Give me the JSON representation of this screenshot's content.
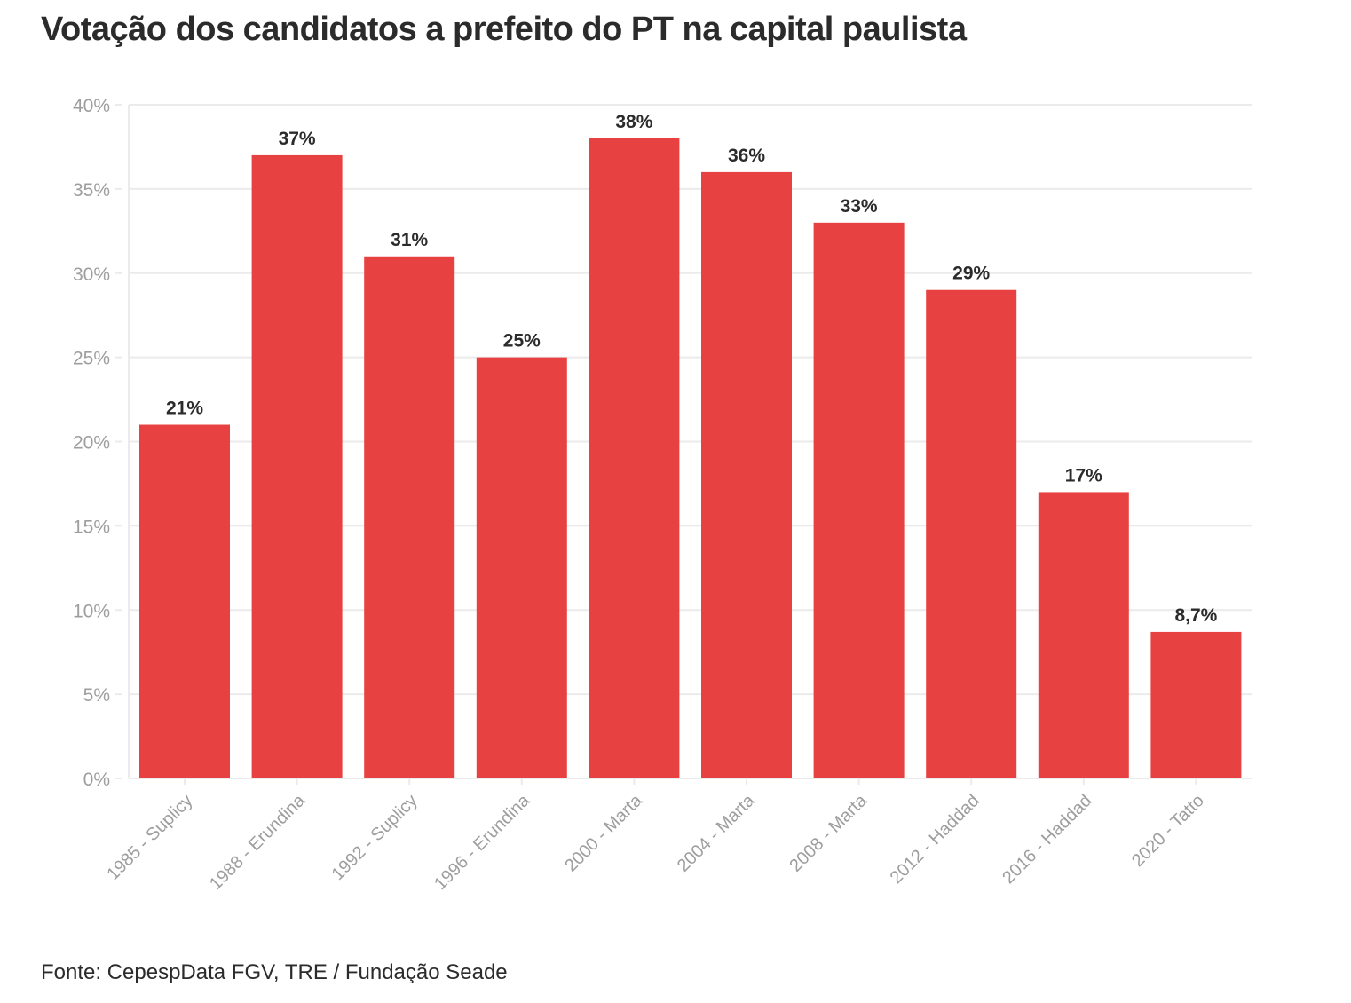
{
  "title": "Votação dos candidatos a prefeito do PT na capital paulista",
  "source": "Fonte: CepespData FGV, TRE / Fundação Seade",
  "colors": {
    "bar": "#e84141",
    "grid": "#ebebeb",
    "axis": "#9e9e9e",
    "label": "#2b2b2b"
  },
  "chart_data": {
    "type": "bar",
    "title": "Votação dos candidatos a prefeito do PT na capital paulista",
    "categories": [
      "1985 - Suplicy",
      "1988 - Erundina",
      "1992 - Suplicy",
      "1996 - Erundina",
      "2000 - Marta",
      "2004 - Marta",
      "2008 - Marta",
      "2012 - Haddad",
      "2016 - Haddad",
      "2020 - Tatto"
    ],
    "values": [
      21,
      37,
      31,
      25,
      38,
      36,
      33,
      29,
      17,
      8.7
    ],
    "value_labels": [
      "21%",
      "37%",
      "31%",
      "25%",
      "38%",
      "36%",
      "33%",
      "29%",
      "17%",
      "8,7%"
    ],
    "ylim": [
      0,
      40
    ],
    "yticks": [
      0,
      5,
      10,
      15,
      20,
      25,
      30,
      35,
      40
    ],
    "ytick_labels": [
      "0%",
      "5%",
      "10%",
      "15%",
      "20%",
      "25%",
      "30%",
      "35%",
      "40%"
    ],
    "xlabel": "",
    "ylabel": "",
    "grid": true
  }
}
